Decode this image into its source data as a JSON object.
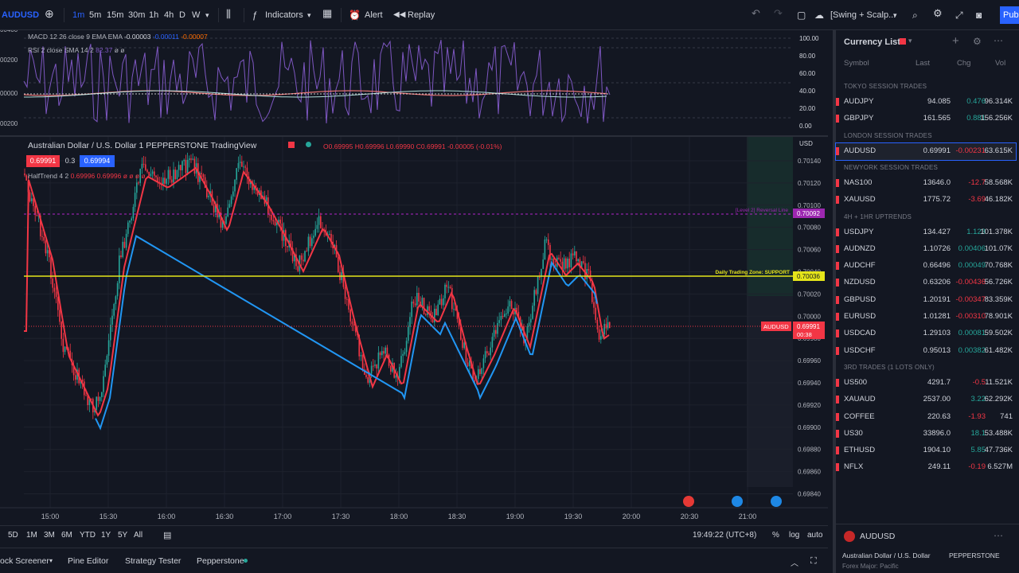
{
  "toolbar": {
    "symbol": "AUDUSD",
    "intervals": [
      "1m",
      "5m",
      "15m",
      "30m",
      "1h",
      "4h",
      "D",
      "W"
    ],
    "indicators": "Indicators",
    "alert": "Alert",
    "replay": "Replay",
    "layout_name": "[Swing + Scalp...",
    "publish": "Publ"
  },
  "indicators": {
    "macd_label": "MACD 12 26 close 9 EMA EMA",
    "macd_v1": "-0.00003",
    "macd_v2": "-0.00011",
    "macd_v3": "-0.00007",
    "rsi_label": "RSI 2 close SMA 14 2",
    "rsi_v1": "82.37",
    "rsi_v2": "ø ø"
  },
  "osc_scale": [
    "100.00",
    "80.00",
    "60.00",
    "40.00",
    "20.00",
    "0.00"
  ],
  "left_osc_scale": [
    "00400",
    "00200",
    "00000",
    "00200"
  ],
  "legend": {
    "title": "Australian Dollar / U.S. Dollar  1  PEPPERSTONE  TradingView",
    "ohlc": "O0.69995 H0.69996 L0.69990 C0.69991 -0.00005 (-0.01%)",
    "sell": "0.69991",
    "spread": "0.3",
    "buy": "0.69994",
    "halftrend": "HalfTrend 4 2",
    "halftrend_vals": "0.69996 0.69996 ø ø ø ø"
  },
  "price_axis": {
    "currency": "USD",
    "ticks": [
      "0.70140",
      "0.70120",
      "0.70100",
      "0.70080",
      "0.70060",
      "0.70040",
      "0.70020",
      "0.70000",
      "0.69980",
      "0.69960",
      "0.69940",
      "0.69920",
      "0.69900",
      "0.69880",
      "0.69860",
      "0.69840"
    ],
    "reversal_tag": "0.70092",
    "reversal_label": "[Level 2] Reversal Line",
    "support_tag": "0.70036",
    "support_label": "Daily Trading Zone: SUPPORT",
    "current_price": "0.69991",
    "countdown": "00:38",
    "symbol_tag": "AUDUSD"
  },
  "time_axis": [
    "15:00",
    "15:30",
    "16:00",
    "16:30",
    "17:00",
    "17:30",
    "18:00",
    "18:30",
    "19:00",
    "19:30",
    "20:00",
    "20:30",
    "21:00"
  ],
  "bottombar": {
    "ranges": [
      "5D",
      "1M",
      "3M",
      "6M",
      "YTD",
      "1Y",
      "5Y",
      "All"
    ],
    "clock": "19:49:22 (UTC+8)",
    "percent": "%",
    "log": "log",
    "auto": "auto"
  },
  "panels": [
    "ock Screener",
    "Pine Editor",
    "Strategy Tester",
    "Pepperstone"
  ],
  "watchlist": {
    "title": "Currency List",
    "headers": {
      "symbol": "Symbol",
      "last": "Last",
      "chg": "Chg",
      "vol": "Vol"
    },
    "sections": [
      {
        "name": "TOKYO SESSION TRADES",
        "rows": [
          {
            "symbol": "AUDJPY",
            "last": "94.085",
            "chg": "0.476",
            "vol": "96.314K",
            "dir": "up"
          },
          {
            "symbol": "GBPJPY",
            "last": "161.565",
            "chg": "0.881",
            "vol": "156.256K",
            "dir": "up"
          }
        ]
      },
      {
        "name": "LONDON SESSION TRADES",
        "rows": [
          {
            "symbol": "AUDUSD",
            "last": "0.69991",
            "chg": "-0.00231",
            "vol": "63.615K",
            "dir": "down",
            "selected": true
          }
        ]
      },
      {
        "name": "NEWYORK SESSION TRADES",
        "rows": [
          {
            "symbol": "NAS100",
            "last": "13646.0",
            "chg": "-12.7",
            "vol": "58.568K",
            "dir": "down"
          },
          {
            "symbol": "XAUUSD",
            "last": "1775.72",
            "chg": "-3.69",
            "vol": "46.182K",
            "dir": "down"
          }
        ]
      },
      {
        "name": "4H + 1HR UPTRENDS",
        "rows": [
          {
            "symbol": "USDJPY",
            "last": "134.427",
            "chg": "1.123",
            "vol": "101.378K",
            "dir": "up"
          },
          {
            "symbol": "AUDNZD",
            "last": "1.10726",
            "chg": "0.00406",
            "vol": "101.07K",
            "dir": "up"
          },
          {
            "symbol": "AUDCHF",
            "last": "0.66496",
            "chg": "0.00049",
            "vol": "70.768K",
            "dir": "up"
          },
          {
            "symbol": "NZDUSD",
            "last": "0.63206",
            "chg": "-0.00436",
            "vol": "56.726K",
            "dir": "down"
          },
          {
            "symbol": "GBPUSD",
            "last": "1.20191",
            "chg": "-0.00347",
            "vol": "83.359K",
            "dir": "down"
          },
          {
            "symbol": "EURUSD",
            "last": "1.01281",
            "chg": "-0.00310",
            "vol": "78.901K",
            "dir": "down"
          },
          {
            "symbol": "USDCAD",
            "last": "1.29103",
            "chg": "0.00081",
            "vol": "59.502K",
            "dir": "up"
          },
          {
            "symbol": "USDCHF",
            "last": "0.95013",
            "chg": "0.00382",
            "vol": "61.482K",
            "dir": "up"
          }
        ]
      },
      {
        "name": "3RD TRADES (1 LOTS ONLY)",
        "rows": [
          {
            "symbol": "US500",
            "last": "4291.7",
            "chg": "-0.5",
            "vol": "11.521K",
            "dir": "down"
          },
          {
            "symbol": "XAUAUD",
            "last": "2537.00",
            "chg": "3.22",
            "vol": "62.292K",
            "dir": "up"
          },
          {
            "symbol": "COFFEE",
            "last": "220.63",
            "chg": "-1.93",
            "vol": "741",
            "dir": "down"
          },
          {
            "symbol": "US30",
            "last": "33896.0",
            "chg": "18.1",
            "vol": "53.488K",
            "dir": "up"
          },
          {
            "symbol": "ETHUSD",
            "last": "1904.10",
            "chg": "5.85",
            "vol": "47.736K",
            "dir": "up"
          },
          {
            "symbol": "NFLX",
            "last": "249.11",
            "chg": "-0.19",
            "vol": "6.527M",
            "dir": "down"
          }
        ]
      }
    ],
    "detail": {
      "symbol": "AUDUSD",
      "name": "Australian Dollar / U.S. Dollar",
      "exchange": "PEPPERSTONE",
      "note": "Forex Major: Pacific"
    }
  },
  "colors": {
    "bg": "#131722",
    "up": "#26a69a",
    "down": "#f23645",
    "accent": "#2962ff",
    "support": "#e5e51a",
    "reversal": "#b026c9"
  }
}
